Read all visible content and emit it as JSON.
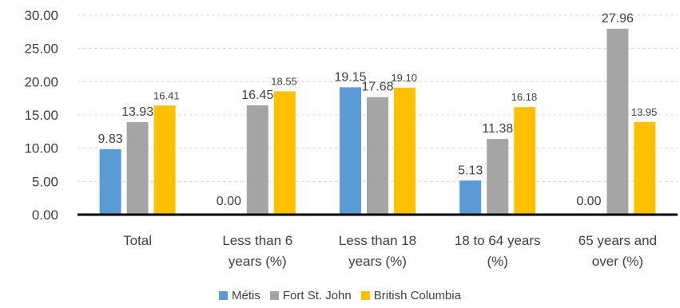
{
  "chart_data": {
    "type": "bar",
    "categories": [
      [
        "Total"
      ],
      [
        "Less than 6",
        "years (%)"
      ],
      [
        "Less than 18",
        "years (%)"
      ],
      [
        "18 to 64 years",
        "(%)"
      ],
      [
        "65 years and",
        "over (%)"
      ]
    ],
    "series": [
      {
        "name": "Métis",
        "color": "#5B9BD5",
        "values": [
          9.83,
          0.0,
          19.15,
          5.13,
          0.0
        ]
      },
      {
        "name": "Fort St. John",
        "color": "#A5A5A5",
        "values": [
          13.93,
          16.45,
          17.68,
          11.38,
          27.96
        ]
      },
      {
        "name": "British Columbia",
        "color": "#FFC000",
        "values": [
          16.41,
          18.55,
          19.1,
          16.18,
          13.95
        ]
      }
    ],
    "data_labels": [
      [
        "9.83",
        "0.00",
        "19.15",
        "5.13",
        "0.00"
      ],
      [
        "13.93",
        "16.45",
        "17.68",
        "11.38",
        "27.96"
      ],
      [
        "16.41",
        "18.55",
        "19.10",
        "16.18",
        "13.95"
      ]
    ],
    "y_ticks": [
      "0.00",
      "5.00",
      "10.00",
      "15.00",
      "20.00",
      "25.00",
      "30.00"
    ],
    "ylim": [
      0,
      30
    ],
    "grid": true,
    "legend_position": "bottom",
    "title": "",
    "xlabel": "",
    "ylabel": ""
  }
}
